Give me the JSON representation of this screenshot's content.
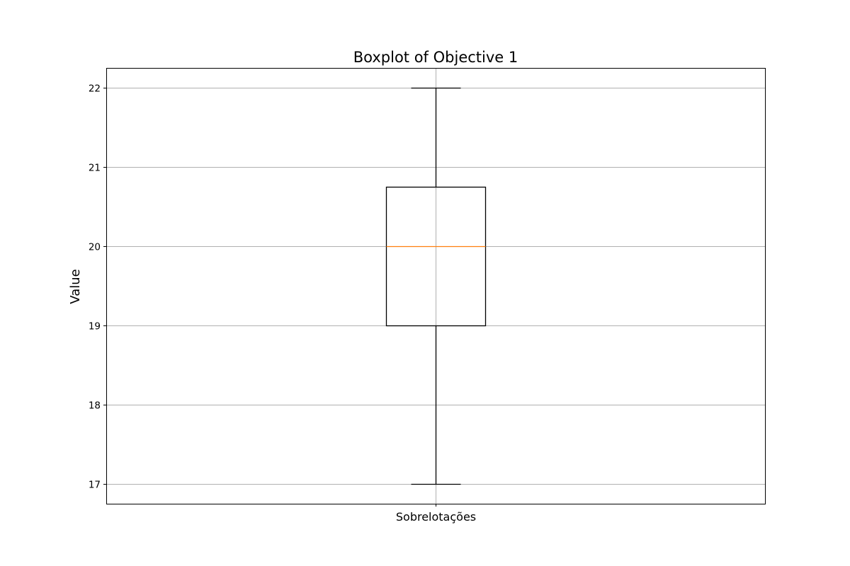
{
  "chart_data": {
    "type": "boxplot",
    "title": "Boxplot of Objective 1",
    "xlabel": "",
    "ylabel": "Value",
    "categories": [
      "Sobrelotações"
    ],
    "boxes": [
      {
        "category": "Sobrelotações",
        "whisker_low": 17,
        "q1": 19,
        "median": 20,
        "q3": 20.75,
        "whisker_high": 22
      }
    ],
    "yticks": [
      17,
      18,
      19,
      20,
      21,
      22
    ],
    "ylim": [
      16.75,
      22.25
    ],
    "grid": true,
    "legend": "none",
    "colors": {
      "box": "#000000",
      "median": "#ff7f0e",
      "grid": "#b0b0b0"
    }
  }
}
